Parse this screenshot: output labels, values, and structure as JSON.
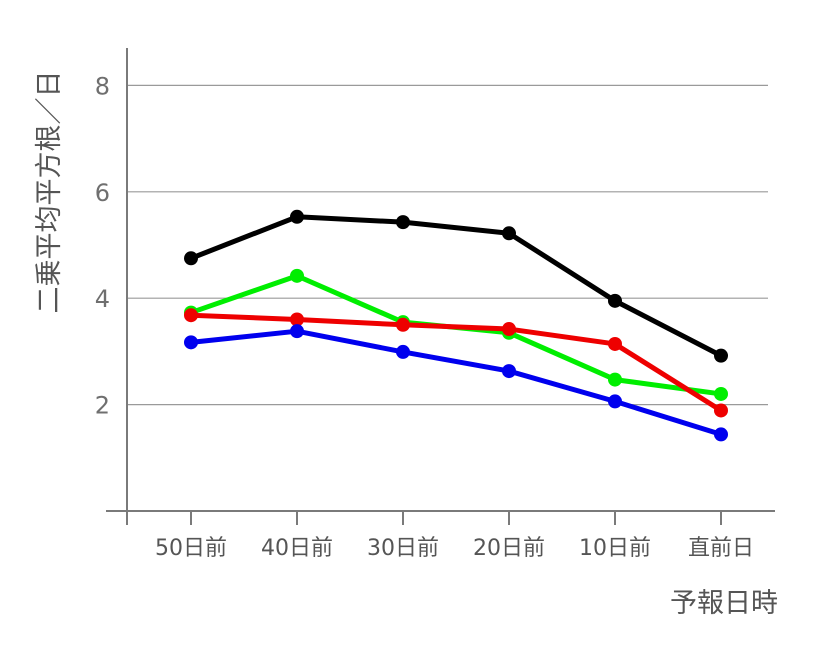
{
  "chart_data": {
    "type": "line",
    "title": "",
    "xlabel": "予報日時",
    "ylabel": "二乗平均平方根／日",
    "categories": [
      "50日前",
      "40日前",
      "30日前",
      "20日前",
      "10日前",
      "直前日"
    ],
    "yticks": [
      2,
      4,
      6,
      8
    ],
    "ylim": [
      0,
      8.8
    ],
    "grid": true,
    "series": [
      {
        "color": "#000000",
        "values": [
          4.75,
          5.53,
          5.43,
          5.22,
          3.95,
          2.92
        ]
      },
      {
        "color": "#00ee00",
        "values": [
          3.73,
          4.42,
          3.55,
          3.35,
          2.47,
          2.2
        ]
      },
      {
        "color": "#ee0000",
        "values": [
          3.68,
          3.6,
          3.5,
          3.42,
          3.14,
          1.89
        ]
      },
      {
        "color": "#0000ee",
        "values": [
          3.17,
          3.38,
          2.99,
          2.63,
          2.06,
          1.44
        ]
      }
    ]
  }
}
